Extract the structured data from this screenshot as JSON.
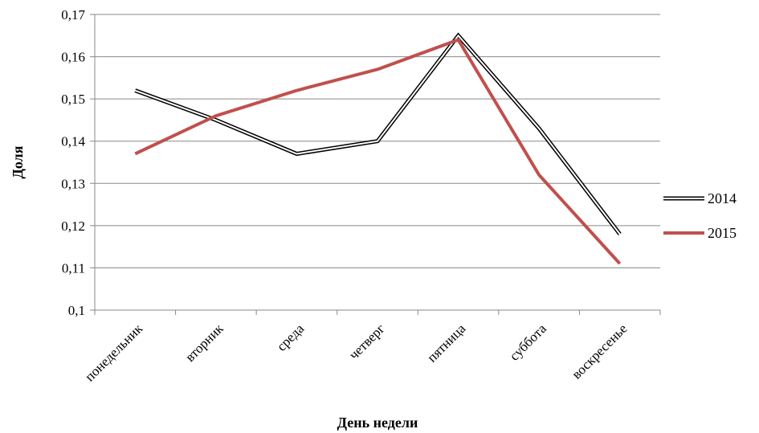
{
  "chart_data": {
    "type": "line",
    "title": "",
    "xlabel": "День недели",
    "ylabel": "Доля",
    "ylim": [
      0.1,
      0.17
    ],
    "yticks": [
      "0,1",
      "0,11",
      "0,12",
      "0,13",
      "0,14",
      "0,15",
      "0,16",
      "0,17"
    ],
    "ytick_values": [
      0.1,
      0.11,
      0.12,
      0.13,
      0.14,
      0.15,
      0.16,
      0.17
    ],
    "grid": true,
    "legend_position": "right",
    "categories": [
      "понедельник",
      "вторник",
      "среда",
      "четверг",
      "пятница",
      "суббота",
      "воскресенье"
    ],
    "series": [
      {
        "name": "2014",
        "color": "#000000",
        "style": "double-outline",
        "values": [
          0.152,
          0.145,
          0.137,
          0.14,
          0.165,
          0.143,
          0.118
        ]
      },
      {
        "name": "2015",
        "color": "#c0504d",
        "style": "solid",
        "values": [
          0.137,
          0.146,
          0.152,
          0.157,
          0.164,
          0.132,
          0.111
        ]
      }
    ]
  }
}
